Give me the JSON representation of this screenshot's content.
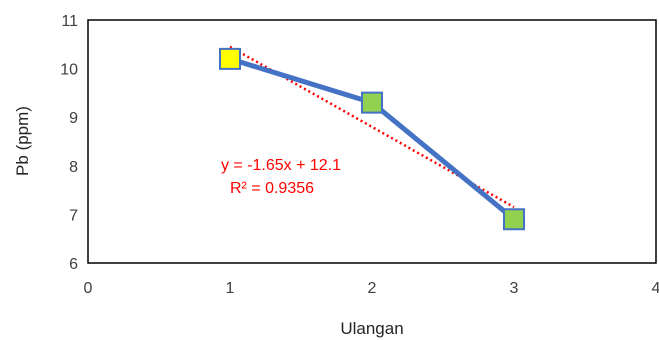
{
  "chart_data": {
    "type": "scatter",
    "title": "",
    "xlabel": "Ulangan",
    "ylabel": "Pb (ppm)",
    "xlim": [
      0,
      4
    ],
    "ylim": [
      6,
      11
    ],
    "xticks": [
      0,
      1,
      2,
      3,
      4
    ],
    "yticks": [
      6,
      7,
      8,
      9,
      10,
      11
    ],
    "grid": false,
    "legend": "none",
    "series": [
      {
        "x": [
          1,
          2,
          3
        ],
        "y": [
          10.2,
          9.3,
          6.9
        ],
        "line_color": "#4472C4",
        "marker": "square",
        "marker_colors": [
          "#FFFF00",
          "#92D050",
          "#92D050"
        ],
        "marker_edge": "#4472C4"
      }
    ],
    "trendline": {
      "kind": "linear",
      "slope": -1.65,
      "intercept": 12.1,
      "color": "#FF0000",
      "style": "dotted",
      "x_range": [
        1,
        3
      ]
    },
    "annotations": {
      "equation": "y = -1.65x + 12.1",
      "r_squared": "R² = 0.9356",
      "color": "#FF0000"
    }
  }
}
